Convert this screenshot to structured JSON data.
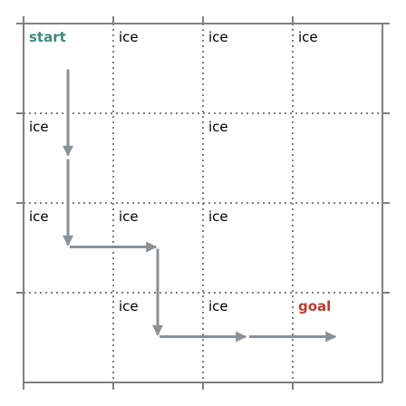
{
  "grid": {
    "rows": 4,
    "cols": 4,
    "line_color": "#808080"
  },
  "cells": [
    {
      "row": 0,
      "col": 0,
      "label": "start",
      "type": "start"
    },
    {
      "row": 0,
      "col": 1,
      "label": "ice",
      "type": "ice"
    },
    {
      "row": 0,
      "col": 2,
      "label": "ice",
      "type": "ice"
    },
    {
      "row": 0,
      "col": 3,
      "label": "ice",
      "type": "ice"
    },
    {
      "row": 1,
      "col": 0,
      "label": "ice",
      "type": "ice"
    },
    {
      "row": 1,
      "col": 2,
      "label": "ice",
      "type": "ice"
    },
    {
      "row": 2,
      "col": 0,
      "label": "ice",
      "type": "ice"
    },
    {
      "row": 2,
      "col": 1,
      "label": "ice",
      "type": "ice"
    },
    {
      "row": 2,
      "col": 2,
      "label": "ice",
      "type": "ice"
    },
    {
      "row": 3,
      "col": 1,
      "label": "ice",
      "type": "ice"
    },
    {
      "row": 3,
      "col": 2,
      "label": "ice",
      "type": "ice"
    },
    {
      "row": 3,
      "col": 3,
      "label": "goal",
      "type": "goal"
    }
  ],
  "colors": {
    "start": "#3d8a7c",
    "goal": "#c0392b",
    "ice": "#000000",
    "arrow": "#8a9196"
  },
  "path": [
    {
      "from": [
        0,
        0
      ],
      "to": [
        1,
        0
      ]
    },
    {
      "from": [
        1,
        0
      ],
      "to": [
        2,
        0
      ]
    },
    {
      "from": [
        2,
        0
      ],
      "to": [
        2,
        1
      ]
    },
    {
      "from": [
        2,
        1
      ],
      "to": [
        3,
        1
      ]
    },
    {
      "from": [
        3,
        1
      ],
      "to": [
        3,
        2
      ]
    },
    {
      "from": [
        3,
        2
      ],
      "to": [
        3,
        3
      ]
    }
  ]
}
